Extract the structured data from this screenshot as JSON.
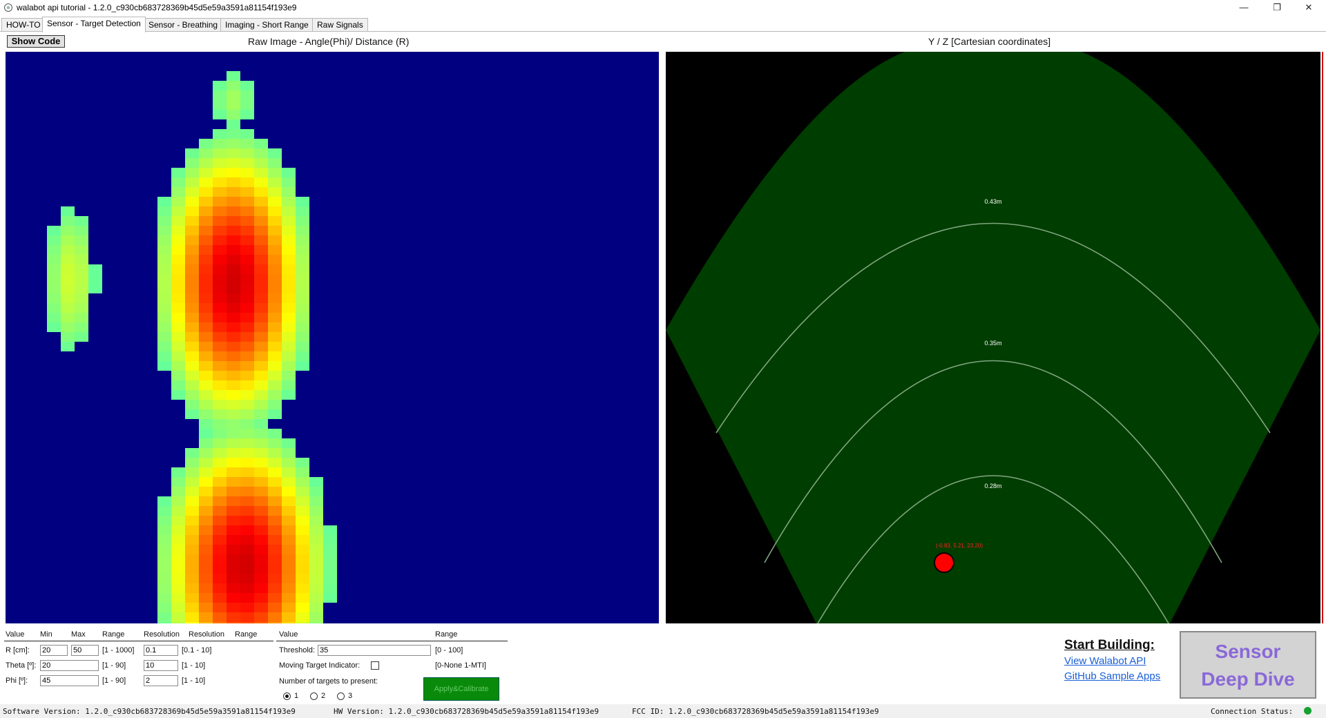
{
  "window": {
    "title": "walabot api tutorial - 1.2.0_c930cb683728369b45d5e59a3591a81154f193e9",
    "minimize": "—",
    "restore": "❐",
    "close": "✕"
  },
  "tabs": [
    {
      "label": "HOW-TO",
      "active": false
    },
    {
      "label": "Sensor - Target Detection",
      "active": true
    },
    {
      "label": "Sensor - Breathing",
      "active": false
    },
    {
      "label": "Imaging - Short Range",
      "active": false
    },
    {
      "label": "Raw Signals",
      "active": false
    }
  ],
  "show_code_label": "Show Code",
  "raw_image": {
    "title": "Raw Image - Angle(Phi)/ Distance (R)",
    "colormap": "jet",
    "background": "#000080"
  },
  "cartesian": {
    "title": "Y / Z [Cartesian coordinates]",
    "fan_color": "#003d00",
    "arc_color": "#7fa67f",
    "arc_labels": [
      "0.43m",
      "0.35m",
      "0.28m"
    ],
    "target_label": "(-0.83, 5.21, 23.20)",
    "target_color": "#ff0000"
  },
  "arena": {
    "headers": {
      "value": "Value",
      "min": "Min",
      "max": "Max",
      "range": "Range",
      "resolution": "Resolution",
      "resolution2": "Resolution",
      "range2": "Range"
    },
    "rows": [
      {
        "label": "R [cm]:",
        "min": "20",
        "max": "50",
        "range": "[1 - 1000]",
        "res": "0.1",
        "res_range": "[0.1 - 10]"
      },
      {
        "label": "Theta [º]:",
        "min": "20",
        "max": "",
        "range": "[1 - 90]",
        "res": "10",
        "res_range": "[1 - 10]"
      },
      {
        "label": "Phi [º]:",
        "min": "45",
        "max": "",
        "range": "[1 - 90]",
        "res": "2",
        "res_range": "[1 - 10]"
      }
    ]
  },
  "detection": {
    "headers": {
      "value": "Value",
      "range": "Range"
    },
    "threshold_label": "Threshold:",
    "threshold_value": "35",
    "threshold_range": "[0 - 100]",
    "mti_label": "Moving Target Indicator:",
    "mti_checked": false,
    "mti_range": "[0-None 1-MTI]",
    "targets_label": "Number of targets to present:",
    "target_options": [
      "1",
      "2",
      "3"
    ],
    "target_selected": "1",
    "apply_label": "Apply&Calibrate"
  },
  "start_building": {
    "title": "Start Building:",
    "links": [
      "View Walabot API",
      "GitHub Sample Apps"
    ]
  },
  "deep_dive": {
    "line1": "Sensor",
    "line2": "Deep Dive"
  },
  "status_bar": {
    "software": "Software Version: 1.2.0_c930cb683728369b45d5e59a3591a81154f193e9",
    "hw": "HW Version: 1.2.0_c930cb683728369b45d5e59a3591a81154f193e9",
    "fcc": "FCC ID: 1.2.0_c930cb683728369b45d5e59a3591a81154f193e9",
    "connection": "Connection Status:",
    "connection_color": "#15a030"
  }
}
